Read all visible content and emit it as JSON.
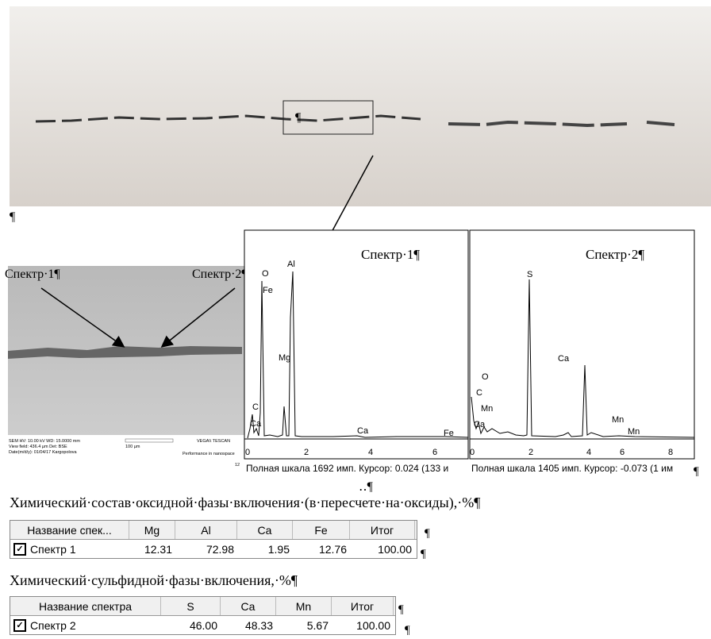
{
  "top_image": {
    "mark": "¶"
  },
  "empty_paragraph": "¶",
  "micrograph": {
    "label_1": "Спектр·1¶",
    "label_2": "Спектр·2¶",
    "info": [
      "SEM HV: 10.00 kV    WD: 15.0000 mm",
      "View field: 436.4 µm  Det: BSE",
      "Date(m/d/y): 01/04/17  Kargopolova"
    ],
    "scale": "100 µm",
    "brand": "VEGA\\\\ TESCAN",
    "slogan": "Performance in nanospace",
    "corner": "12"
  },
  "spectra": [
    {
      "title": "Спектр·1¶",
      "peaks": [
        "O",
        "Fe",
        "Al",
        "Mg",
        "C",
        "Ca",
        "Ca",
        "Fe"
      ],
      "ticks": [
        "0",
        "2",
        "4",
        "6"
      ],
      "status": "Полная шкала 1692 имп. Курсор: 0.024 (133 и"
    },
    {
      "title": "Спектр·2¶",
      "peaks": [
        "S",
        "Ca",
        "O",
        "C",
        "Mn",
        "Ca",
        "Mn",
        "Mn"
      ],
      "ticks": [
        "0",
        "2",
        "4",
        "6",
        "8"
      ],
      "status": "Полная шкала 1405 имп. Курсор: -0.073 (1 им",
      "end_mark": "¶"
    }
  ],
  "dots": "‥¶",
  "table_1": {
    "caption": "Химический·состав·оксидной·фазы·включения·(в·пересчете·на·оксиды),·%¶",
    "header": [
      "Название спек...",
      "Mg",
      "Al",
      "Ca",
      "Fe",
      "Итог"
    ],
    "rows": [
      [
        "Спектр  1",
        "12.31",
        "72.98",
        "1.95",
        "12.76",
        "100.00"
      ]
    ],
    "end_marks": [
      "¶",
      "¶"
    ]
  },
  "table_2": {
    "caption": "Химический·сульфидной·фазы·включения,·%¶",
    "header": [
      "Название спектра",
      "S",
      "Ca",
      "Mn",
      "Итог"
    ],
    "rows": [
      [
        "Спектр  2",
        "46.00",
        "48.33",
        "5.67",
        "100.00"
      ]
    ],
    "end_marks": [
      "¶",
      "¶"
    ]
  }
}
